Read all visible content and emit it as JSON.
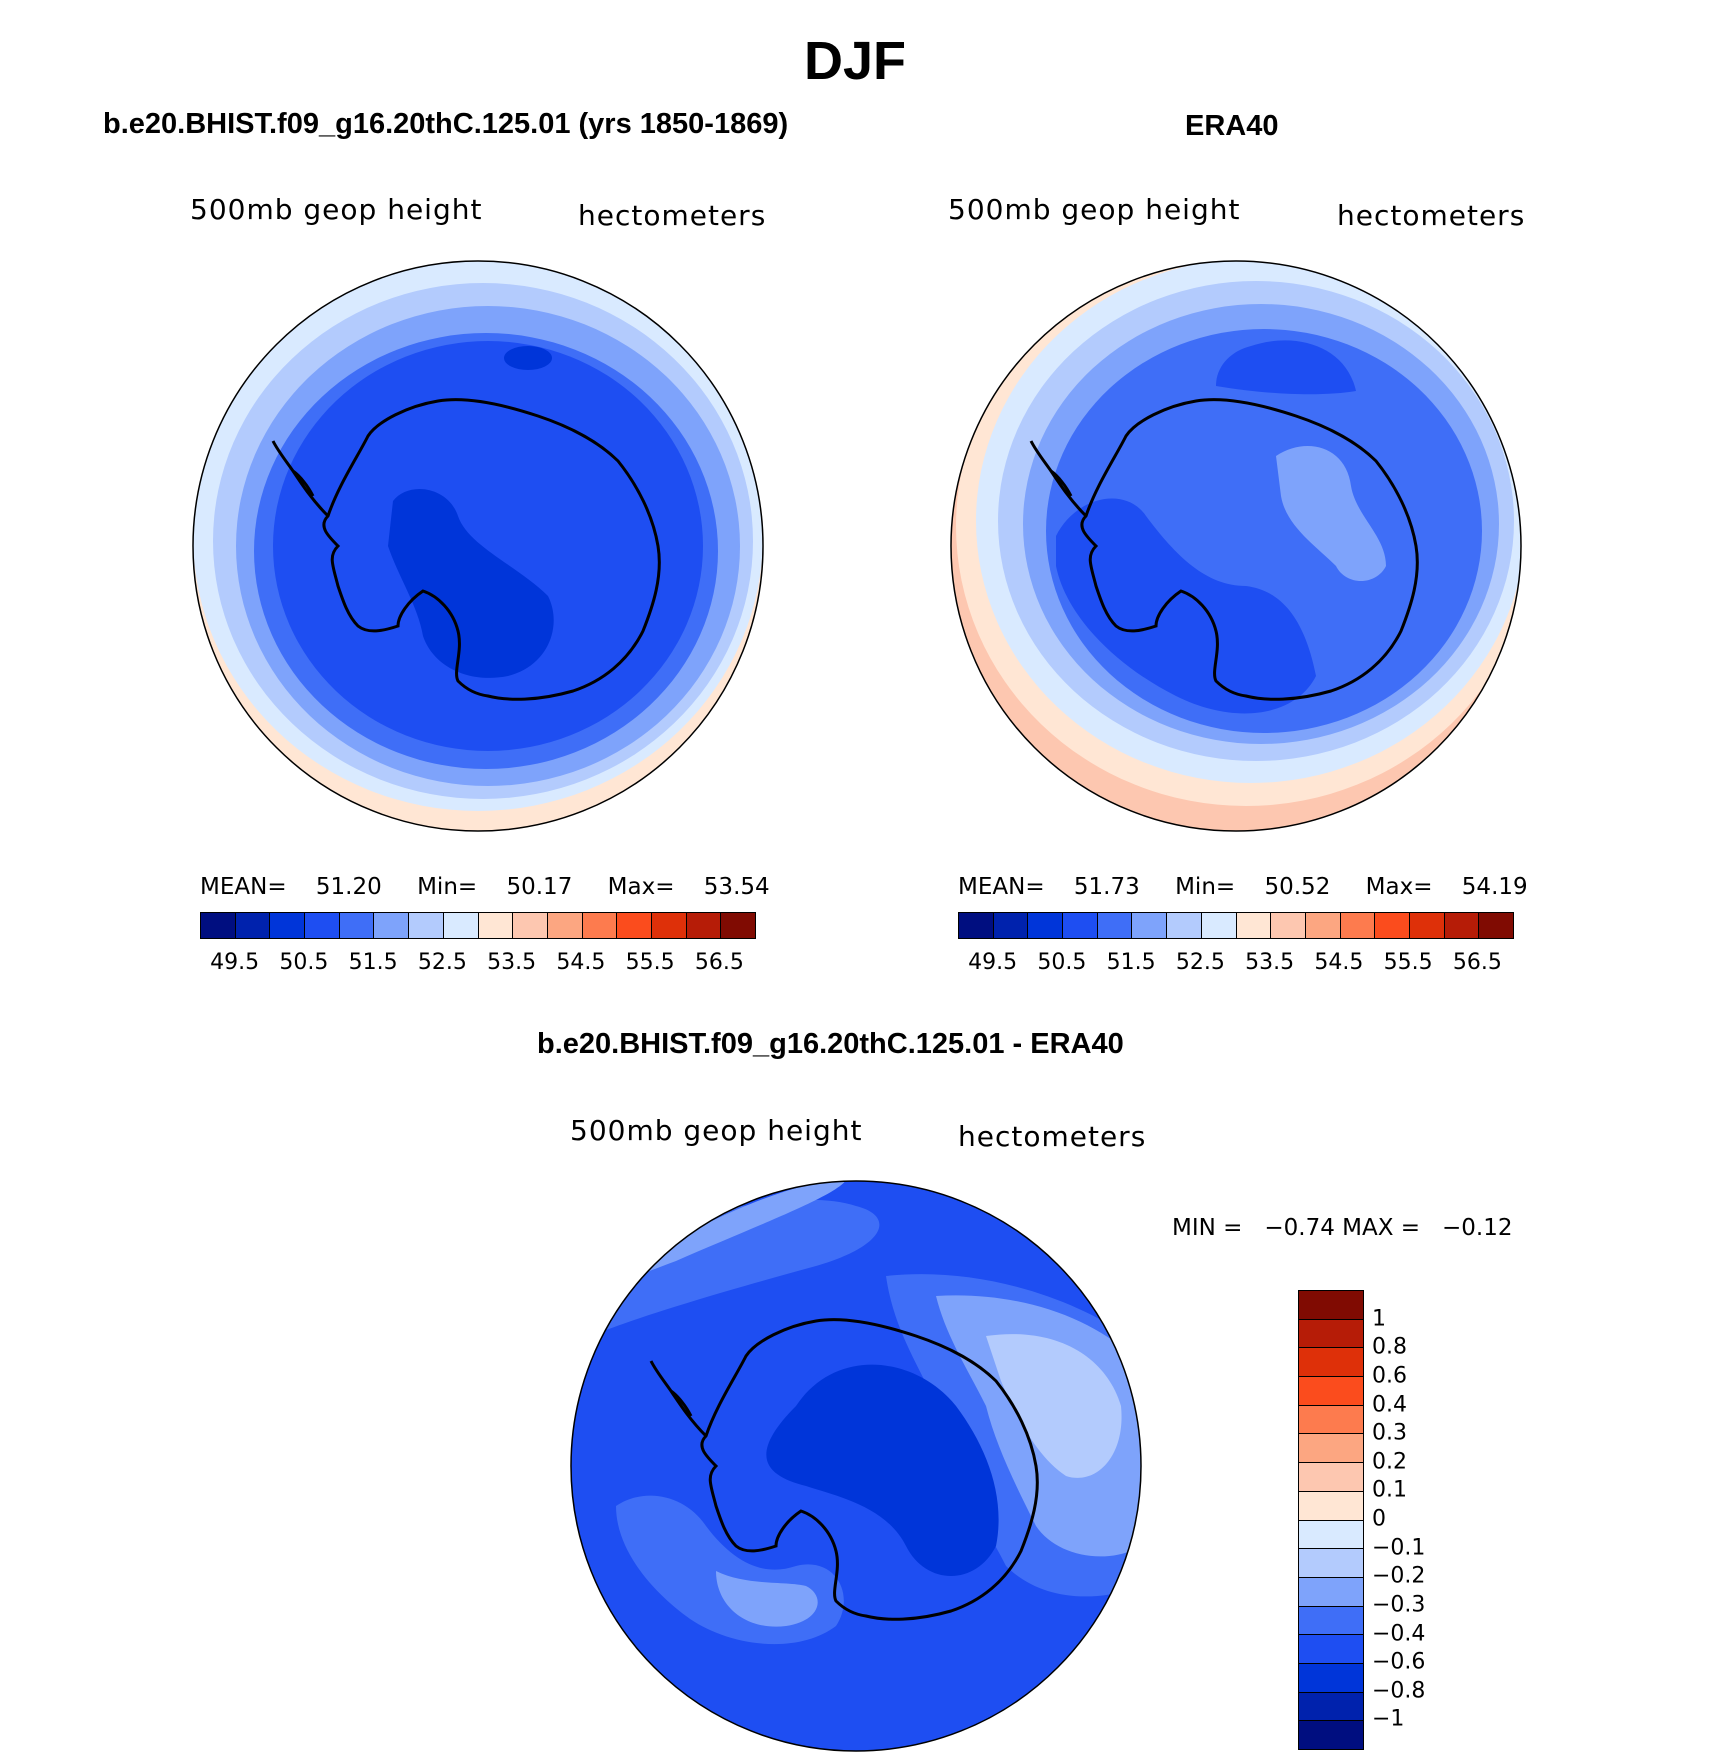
{
  "title": "DJF",
  "panels": {
    "model": {
      "title": "b.e20.BHIST.f09_g16.20thC.125.01 (yrs 1850-1869)",
      "left_label": "500mb geop height",
      "right_label": "hectometers",
      "stats": {
        "mean_label": "MEAN=",
        "mean": "51.20",
        "min_label": "Min=",
        "min": "50.17",
        "max_label": "Max=",
        "max": "53.54"
      }
    },
    "obs": {
      "title": "ERA40",
      "left_label": "500mb geop height",
      "right_label": "hectometers",
      "stats": {
        "mean_label": "MEAN=",
        "mean": "51.73",
        "min_label": "Min=",
        "min": "50.52",
        "max_label": "Max=",
        "max": "54.19"
      }
    },
    "diff": {
      "title": "b.e20.BHIST.f09_g16.20thC.125.01 - ERA40",
      "left_label": "500mb geop height",
      "right_label": "hectometers",
      "minmax_text": "MIN =   −0.74 MAX =   −0.12"
    }
  },
  "colorbar_abs": {
    "colors": [
      "#000e80",
      "#0022ad",
      "#0035d9",
      "#1e4ef2",
      "#3f6ef7",
      "#7ea3fb",
      "#b3cbfd",
      "#d9eaff",
      "#ffe6d4",
      "#fdc7b0",
      "#fca681",
      "#fd7b4e",
      "#fb4c1d",
      "#de3009",
      "#b61c07",
      "#800b02"
    ],
    "ticks": [
      "49.5",
      "50.5",
      "51.5",
      "52.5",
      "53.5",
      "54.5",
      "55.5",
      "56.5"
    ]
  },
  "colorbar_diff": {
    "colors": [
      "#800b02",
      "#b61c07",
      "#de3009",
      "#fb4c1d",
      "#fd7b4e",
      "#fca681",
      "#fdc7b0",
      "#ffe6d4",
      "#d9eaff",
      "#b3cbfd",
      "#7ea3fb",
      "#3f6ef7",
      "#1e4ef2",
      "#0035d9",
      "#0022ad",
      "#000e80"
    ],
    "ticks": [
      "1",
      "0.8",
      "0.6",
      "0.4",
      "0.3",
      "0.2",
      "0.1",
      "0",
      "−0.1",
      "−0.2",
      "−0.3",
      "−0.4",
      "−0.6",
      "−0.8",
      "−1"
    ]
  },
  "chart_data": [
    {
      "type": "heatmap",
      "title": "b.e20.BHIST.f09_g16.20thC.125.01 (yrs 1850-1869)",
      "variable": "500mb geop height",
      "units": "hectometers",
      "mean": 51.2,
      "min": 50.17,
      "max": 53.54,
      "levels": [
        49.5,
        50,
        50.5,
        51,
        51.5,
        52,
        52.5,
        53,
        53.5,
        54,
        54.5,
        55,
        55.5,
        56,
        56.5
      ],
      "legend": "bottom"
    },
    {
      "type": "heatmap",
      "title": "ERA40",
      "variable": "500mb geop height",
      "units": "hectometers",
      "mean": 51.73,
      "min": 50.52,
      "max": 54.19,
      "levels": [
        49.5,
        50,
        50.5,
        51,
        51.5,
        52,
        52.5,
        53,
        53.5,
        54,
        54.5,
        55,
        55.5,
        56,
        56.5
      ],
      "legend": "bottom"
    },
    {
      "type": "heatmap",
      "title": "b.e20.BHIST.f09_g16.20thC.125.01 - ERA40",
      "variable": "500mb geop height",
      "units": "hectometers",
      "min": -0.74,
      "max": -0.12,
      "levels": [
        1,
        0.8,
        0.6,
        0.4,
        0.3,
        0.2,
        0.1,
        0,
        -0.1,
        -0.2,
        -0.3,
        -0.4,
        -0.6,
        -0.8,
        -1
      ],
      "legend": "right"
    }
  ]
}
